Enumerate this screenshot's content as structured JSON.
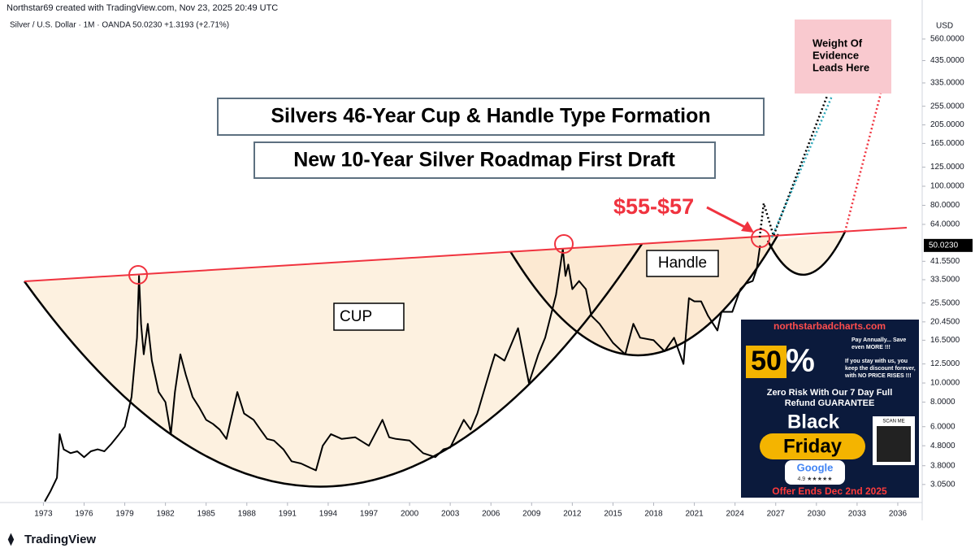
{
  "header": "Northstar69 created with TradingView.com, Nov 23, 2025 20:49 UTC",
  "symbol_line": "Silver / U.S. Dollar · 1M · OANDA  50.0230  +1.3193 (+2.71%)",
  "currency": "USD",
  "logo": "TradingView",
  "chart_data": {
    "type": "line",
    "title": "Silvers 46-Year Cup & Handle Type Formation",
    "subtitle": "New 10-Year Silver Roadmap First Draft",
    "annotations": {
      "target": "$55-$57",
      "cup": "CUP",
      "handle": "Handle",
      "evidence": [
        "Weight Of",
        "Evidence",
        "Leads Here"
      ]
    },
    "y_scale": "log",
    "xlim": [
      1969.8,
      2037.8
    ],
    "xticks": [
      1973,
      1976,
      1979,
      1982,
      1985,
      1988,
      1991,
      1994,
      1997,
      2000,
      2003,
      2006,
      2009,
      2012,
      2015,
      2018,
      2021,
      2024,
      2027,
      2030,
      2033,
      2036
    ],
    "ylim": [
      2.47,
      717
    ],
    "yticks": [
      {
        "value": 560,
        "label": "560.0000"
      },
      {
        "value": 435,
        "label": "435.0000"
      },
      {
        "value": 335,
        "label": "335.0000"
      },
      {
        "value": 255,
        "label": "255.0000"
      },
      {
        "value": 205,
        "label": "205.0000"
      },
      {
        "value": 165,
        "label": "165.0000"
      },
      {
        "value": 125,
        "label": "125.0000"
      },
      {
        "value": 100,
        "label": "100.0000"
      },
      {
        "value": 80,
        "label": "80.0000"
      },
      {
        "value": 64,
        "label": "64.0000"
      },
      {
        "value": 41.55,
        "label": "41.5500"
      },
      {
        "value": 33.5,
        "label": "33.5000"
      },
      {
        "value": 25.5,
        "label": "25.5000"
      },
      {
        "value": 20.45,
        "label": "20.4500"
      },
      {
        "value": 16.5,
        "label": "16.5000"
      },
      {
        "value": 12.5,
        "label": "12.5000"
      },
      {
        "value": 10,
        "label": "10.0000"
      },
      {
        "value": 8,
        "label": "8.0000"
      },
      {
        "value": 6,
        "label": "6.0000"
      },
      {
        "value": 4.8,
        "label": "4.8000"
      },
      {
        "value": 3.8,
        "label": "3.8000"
      },
      {
        "value": 3.05,
        "label": "3.0500"
      }
    ],
    "last_price": {
      "value": 50.023,
      "label": "50.0230"
    },
    "series": [
      {
        "name": "Silver / U.S. Dollar",
        "color": "#000000",
        "x": [
          1973.1,
          1973.5,
          1974.0,
          1974.2,
          1974.5,
          1975.0,
          1975.5,
          1976.0,
          1976.5,
          1977.0,
          1977.5,
          1978.0,
          1978.5,
          1979.0,
          1979.5,
          1979.9,
          1980.05,
          1980.2,
          1980.4,
          1980.7,
          1981.0,
          1981.5,
          1982.0,
          1982.4,
          1982.7,
          1983.1,
          1983.5,
          1984.0,
          1984.5,
          1985.0,
          1985.5,
          1986.0,
          1986.5,
          1987.3,
          1987.8,
          1988.5,
          1989.0,
          1989.5,
          1990.0,
          1990.7,
          1991.3,
          1992.0,
          1992.7,
          1993.1,
          1993.6,
          1994.2,
          1995.0,
          1996.0,
          1997.0,
          1998.0,
          1998.5,
          1999.0,
          2000.0,
          2001.0,
          2001.9,
          2002.5,
          2003.0,
          2004.0,
          2004.5,
          2005.0,
          2006.0,
          2006.3,
          2007.0,
          2008.0,
          2008.8,
          2009.5,
          2010.0,
          2010.8,
          2011.3,
          2011.5,
          2011.7,
          2012.0,
          2012.5,
          2013.0,
          2013.4,
          2014.0,
          2015.0,
          2015.9,
          2016.5,
          2017.0,
          2018.0,
          2018.8,
          2019.5,
          2020.2,
          2020.6,
          2021.0,
          2021.5,
          2022.0,
          2022.7,
          2023.0,
          2023.8,
          2024.4,
          2024.8,
          2025.3,
          2025.6,
          2025.85
        ],
        "values": [
          2.5,
          2.8,
          3.3,
          5.5,
          4.6,
          4.4,
          4.5,
          4.2,
          4.5,
          4.6,
          4.5,
          4.9,
          5.4,
          6.0,
          8.5,
          17,
          35,
          20,
          14,
          20,
          13,
          9,
          8,
          5.5,
          9,
          14,
          11,
          8.5,
          7.5,
          6.5,
          6.2,
          5.8,
          5.2,
          9,
          7,
          6.5,
          5.8,
          5.2,
          5.1,
          4.6,
          4.0,
          3.9,
          3.7,
          3.6,
          4.8,
          5.5,
          5.2,
          5.3,
          4.8,
          6.5,
          5.3,
          5.2,
          5.1,
          4.4,
          4.2,
          4.6,
          4.7,
          6.5,
          5.8,
          7.0,
          12,
          14,
          13,
          19,
          10,
          14,
          17,
          28,
          48,
          35,
          40,
          30,
          33,
          30,
          22,
          20,
          16,
          14,
          20,
          17,
          16.5,
          14.5,
          17,
          12.5,
          27,
          26,
          26,
          22,
          18.5,
          23,
          23,
          30,
          32,
          33,
          38,
          50.023
        ]
      }
    ]
  },
  "ad": {
    "site": "northstarbadcharts.com",
    "big": "50",
    "pct": "%",
    "note1": [
      "Pay Annually... Save",
      "even MORE !!!"
    ],
    "note2": [
      "If you stay with us, you",
      "keep the discount forever,",
      "with NO PRICE RISES !!!"
    ],
    "guarantee": [
      "Zero Risk With Our 7 Day Full",
      "Refund GUARANTEE"
    ],
    "black": "Black",
    "friday": "Friday",
    "google": "Google",
    "rating": "4.9 ★★★★★",
    "scan": "SCAN ME",
    "offer": "Offer Ends Dec 2nd 2025"
  }
}
